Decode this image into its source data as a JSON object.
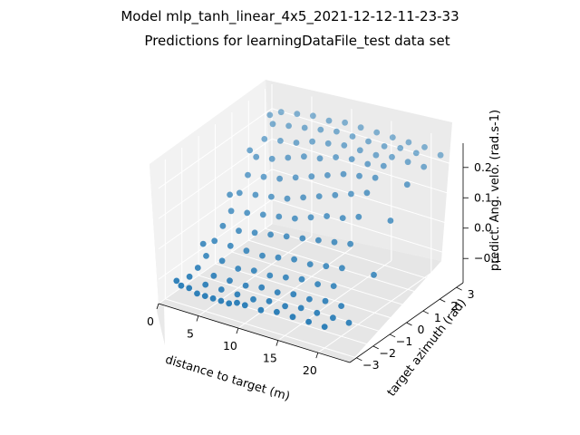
{
  "chart_data": {
    "type": "scatter",
    "title": "Model mlp_tanh_linear_4x5_2021-12-12-11-23-33",
    "subtitle": "Predictions for learningDataFile_test data set",
    "xlabel": "distance to target (m)",
    "ylabel": "target azimuth (rad)",
    "zlabel": "predict. Ang. velo. (rad.s-1)",
    "xlim": [
      0,
      24
    ],
    "ylim": [
      -3.4,
      3.4
    ],
    "zlim": [
      -0.18,
      0.28
    ],
    "xticks": [
      "0",
      "5",
      "10",
      "15",
      "20"
    ],
    "yticks": [
      "−3",
      "−2",
      "−1",
      "0",
      "1",
      "2",
      "3"
    ],
    "zticks": [
      "−0.1",
      "0.0",
      "0.1",
      "0.2"
    ],
    "grid": true,
    "marker_color": "#1f77b4",
    "series": [
      {
        "points": [
          [
            2,
            -3.0,
            -0.12
          ],
          [
            3,
            -3.0,
            -0.12
          ],
          [
            4,
            -3.0,
            -0.13
          ],
          [
            5,
            -3.0,
            -0.13
          ],
          [
            6,
            -3.0,
            -0.13
          ],
          [
            7,
            -3.0,
            -0.13
          ],
          [
            8,
            -3.0,
            -0.13
          ],
          [
            9,
            -3.0,
            -0.12
          ],
          [
            10,
            -3.0,
            -0.12
          ],
          [
            12,
            -3.0,
            -0.12
          ],
          [
            14,
            -3.0,
            -0.11
          ],
          [
            16,
            -3.0,
            -0.11
          ],
          [
            18,
            -3.0,
            -0.11
          ],
          [
            20,
            -3.0,
            -0.11
          ],
          [
            2,
            -2.5,
            -0.11
          ],
          [
            4,
            -2.5,
            -0.12
          ],
          [
            6,
            -2.5,
            -0.12
          ],
          [
            8,
            -2.5,
            -0.12
          ],
          [
            10,
            -2.5,
            -0.12
          ],
          [
            12,
            -2.5,
            -0.11
          ],
          [
            14,
            -2.5,
            -0.11
          ],
          [
            16,
            -2.5,
            -0.1
          ],
          [
            18,
            -2.5,
            -0.1
          ],
          [
            20,
            -2.5,
            -0.1
          ],
          [
            2,
            -2.0,
            -0.1
          ],
          [
            4,
            -2.0,
            -0.11
          ],
          [
            6,
            -2.0,
            -0.11
          ],
          [
            8,
            -2.0,
            -0.11
          ],
          [
            10,
            -2.0,
            -0.1
          ],
          [
            12,
            -2.0,
            -0.1
          ],
          [
            14,
            -2.0,
            -0.09
          ],
          [
            16,
            -2.0,
            -0.09
          ],
          [
            18,
            -2.0,
            -0.08
          ],
          [
            20,
            -2.0,
            -0.08
          ],
          [
            2,
            -1.5,
            -0.08
          ],
          [
            4,
            -1.5,
            -0.08
          ],
          [
            6,
            -1.5,
            -0.09
          ],
          [
            8,
            -1.5,
            -0.08
          ],
          [
            10,
            -1.5,
            -0.08
          ],
          [
            12,
            -1.5,
            -0.07
          ],
          [
            14,
            -1.5,
            -0.06
          ],
          [
            16,
            -1.5,
            -0.06
          ],
          [
            18,
            -1.5,
            -0.05
          ],
          [
            2,
            -1.0,
            -0.05
          ],
          [
            4,
            -1.0,
            -0.05
          ],
          [
            6,
            -1.0,
            -0.05
          ],
          [
            8,
            -1.0,
            -0.05
          ],
          [
            10,
            -1.0,
            -0.04
          ],
          [
            12,
            -1.0,
            -0.03
          ],
          [
            14,
            -1.0,
            -0.03
          ],
          [
            16,
            -1.0,
            -0.02
          ],
          [
            18,
            -1.0,
            -0.01
          ],
          [
            2,
            -0.5,
            -0.02
          ],
          [
            4,
            -0.5,
            -0.02
          ],
          [
            6,
            -0.5,
            -0.01
          ],
          [
            8,
            -0.5,
            0.0
          ],
          [
            10,
            -0.5,
            0.01
          ],
          [
            12,
            -0.5,
            0.02
          ],
          [
            14,
            -0.5,
            0.03
          ],
          [
            16,
            -0.5,
            0.04
          ],
          [
            18,
            -0.5,
            0.05
          ],
          [
            2,
            0.0,
            0.01
          ],
          [
            4,
            0.0,
            0.02
          ],
          [
            6,
            0.0,
            0.03
          ],
          [
            8,
            0.0,
            0.04
          ],
          [
            10,
            0.0,
            0.05
          ],
          [
            12,
            0.0,
            0.07
          ],
          [
            14,
            0.0,
            0.09
          ],
          [
            16,
            0.0,
            0.1
          ],
          [
            18,
            0.0,
            0.12
          ],
          [
            2,
            0.5,
            0.05
          ],
          [
            4,
            0.5,
            0.06
          ],
          [
            6,
            0.5,
            0.07
          ],
          [
            8,
            0.5,
            0.08
          ],
          [
            10,
            0.5,
            0.1
          ],
          [
            12,
            0.5,
            0.12
          ],
          [
            14,
            0.5,
            0.14
          ],
          [
            16,
            0.5,
            0.16
          ],
          [
            18,
            0.5,
            0.18
          ],
          [
            2,
            1.0,
            0.09
          ],
          [
            4,
            1.0,
            0.1
          ],
          [
            6,
            1.0,
            0.11
          ],
          [
            8,
            1.0,
            0.13
          ],
          [
            10,
            1.0,
            0.15
          ],
          [
            12,
            1.0,
            0.17
          ],
          [
            14,
            1.0,
            0.19
          ],
          [
            16,
            1.0,
            0.2
          ],
          [
            18,
            1.0,
            0.21
          ],
          [
            2,
            1.5,
            0.13
          ],
          [
            4,
            1.5,
            0.14
          ],
          [
            6,
            1.5,
            0.16
          ],
          [
            8,
            1.5,
            0.18
          ],
          [
            10,
            1.5,
            0.19
          ],
          [
            12,
            1.5,
            0.21
          ],
          [
            14,
            1.5,
            0.22
          ],
          [
            16,
            1.5,
            0.22
          ],
          [
            18,
            1.5,
            0.23
          ],
          [
            2,
            2.0,
            0.17
          ],
          [
            4,
            2.0,
            0.18
          ],
          [
            6,
            2.0,
            0.19
          ],
          [
            8,
            2.0,
            0.21
          ],
          [
            10,
            2.0,
            0.22
          ],
          [
            12,
            2.0,
            0.23
          ],
          [
            14,
            2.0,
            0.23
          ],
          [
            16,
            2.0,
            0.23
          ],
          [
            18,
            2.0,
            0.24
          ],
          [
            20,
            2.0,
            0.24
          ],
          [
            2,
            2.5,
            0.2
          ],
          [
            4,
            2.5,
            0.21
          ],
          [
            6,
            2.5,
            0.22
          ],
          [
            8,
            2.5,
            0.23
          ],
          [
            10,
            2.5,
            0.24
          ],
          [
            12,
            2.5,
            0.24
          ],
          [
            14,
            2.5,
            0.24
          ],
          [
            16,
            2.5,
            0.24
          ],
          [
            18,
            2.5,
            0.25
          ],
          [
            20,
            2.5,
            0.25
          ],
          [
            2,
            3.0,
            0.22
          ],
          [
            4,
            3.0,
            0.23
          ],
          [
            6,
            3.0,
            0.24
          ],
          [
            8,
            3.0,
            0.24
          ],
          [
            10,
            3.0,
            0.25
          ],
          [
            12,
            3.0,
            0.25
          ],
          [
            14,
            3.0,
            0.25
          ],
          [
            16,
            3.0,
            0.25
          ],
          [
            18,
            3.0,
            0.25
          ],
          [
            20,
            3.0,
            0.25
          ],
          [
            22,
            3.0,
            0.24
          ],
          [
            22,
            -2.5,
            -0.1
          ],
          [
            22,
            -1.0,
            0.0
          ],
          [
            22,
            0.0,
            0.14
          ],
          [
            22,
            1.0,
            0.22
          ],
          [
            22,
            2.0,
            0.24
          ],
          [
            1,
            -2.8,
            -0.12
          ],
          [
            1,
            -1.2,
            -0.06
          ],
          [
            1,
            0.4,
            0.04
          ],
          [
            1,
            1.6,
            0.14
          ],
          [
            1,
            2.8,
            0.21
          ]
        ]
      }
    ]
  }
}
